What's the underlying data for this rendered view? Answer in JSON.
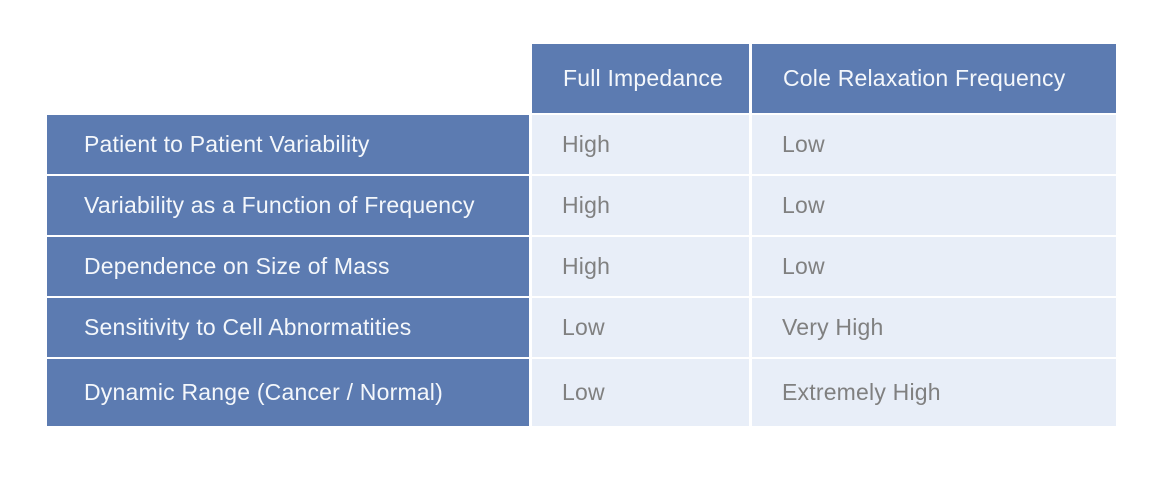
{
  "chart_data": {
    "type": "table",
    "title": "",
    "columns": [
      "Full Impedance",
      "Cole Relaxation Frequency"
    ],
    "rows": [
      {
        "label": "Patient to Patient Variability",
        "values": [
          "High",
          "Low"
        ]
      },
      {
        "label": "Variability as a Function of Frequency",
        "values": [
          "High",
          "Low"
        ]
      },
      {
        "label": "Dependence on Size of Mass",
        "values": [
          "High",
          "Low"
        ]
      },
      {
        "label": "Sensitivity to Cell Abnormatities",
        "values": [
          "Low",
          "Very High"
        ]
      },
      {
        "label": "Dynamic Range (Cancer / Normal)",
        "values": [
          "Low",
          "Extremely High"
        ]
      }
    ],
    "layout": {
      "header_fill": "#5c7bb1",
      "row_header_fill": "#5c7bb1",
      "data_cell_fill": "#e8eef8",
      "header_text_color": "#f4f7fb",
      "data_text_color": "#808080",
      "divider_color": "#ffffff",
      "grid": "white gaps between all cells",
      "top_left_corner": "empty"
    }
  }
}
